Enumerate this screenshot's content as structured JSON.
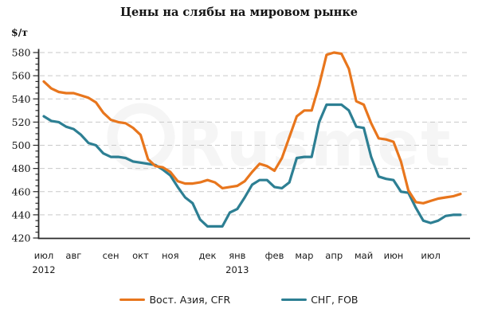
{
  "title": "Цены на слябы на мировом рынке",
  "unit_label": "$/т",
  "watermark": "Rusmet",
  "colors": {
    "east_asia": "#e8761d",
    "cis": "#2d7f93",
    "grid": "#c9c9c9",
    "axis": "#2b2b2b",
    "text": "#1a1a1a",
    "watermark": "#f5f5f5"
  },
  "legend": [
    {
      "label": "Вост. Азия, CFR",
      "color_key": "east_asia"
    },
    {
      "label": "СНГ, FOB",
      "color_key": "cis"
    }
  ],
  "chart_data": {
    "type": "line",
    "title": "Цены на слябы на мировом рынке",
    "ylabel": "$/т",
    "x_unit": "weeks, июл 2012 — июл 2013",
    "grid": "horizontal-dashed",
    "legend_position": "bottom-center",
    "y_axis": {
      "min": 420,
      "max": 580,
      "major_step": 20,
      "minor_step": 5,
      "tick_labels": [
        420,
        440,
        460,
        480,
        500,
        520,
        540,
        560,
        580
      ]
    },
    "x_ticks": [
      {
        "label": "июл",
        "index": 0,
        "year": "2012"
      },
      {
        "label": "авг",
        "index": 4
      },
      {
        "label": "сен",
        "index": 9
      },
      {
        "label": "окт",
        "index": 13
      },
      {
        "label": "ноя",
        "index": 17
      },
      {
        "label": "дек",
        "index": 22
      },
      {
        "label": "янв",
        "index": 26,
        "year": "2013"
      },
      {
        "label": "фев",
        "index": 31
      },
      {
        "label": "мар",
        "index": 35
      },
      {
        "label": "апр",
        "index": 39
      },
      {
        "label": "май",
        "index": 43
      },
      {
        "label": "июн",
        "index": 47
      },
      {
        "label": "июл",
        "index": 52
      }
    ],
    "series": [
      {
        "name": "Вост. Азия, CFR",
        "color_key": "east_asia",
        "values": [
          555,
          549,
          546,
          545,
          545,
          543,
          541,
          537,
          528,
          522,
          520,
          519,
          515,
          509,
          488,
          482,
          481,
          477,
          469,
          467,
          467,
          468,
          470,
          468,
          463,
          464,
          465,
          469,
          477,
          484,
          482,
          478,
          489,
          507,
          525,
          530,
          530,
          552,
          578,
          580,
          579,
          566,
          538,
          535,
          519,
          506,
          505,
          503,
          486,
          461,
          451,
          450,
          452,
          454,
          455,
          456,
          458
        ]
      },
      {
        "name": "СНГ, FOB",
        "color_key": "cis",
        "values": [
          525,
          521,
          520,
          516,
          514,
          509,
          502,
          500,
          493,
          490,
          490,
          489,
          486,
          485,
          484,
          483,
          479,
          474,
          464,
          455,
          450,
          436,
          430,
          430,
          430,
          442,
          445,
          455,
          466,
          470,
          470,
          464,
          463,
          468,
          489,
          490,
          490,
          520,
          535,
          535,
          535,
          530,
          516,
          515,
          490,
          473,
          471,
          470,
          460,
          459,
          446,
          435,
          433,
          435,
          439,
          440,
          440
        ]
      }
    ]
  }
}
